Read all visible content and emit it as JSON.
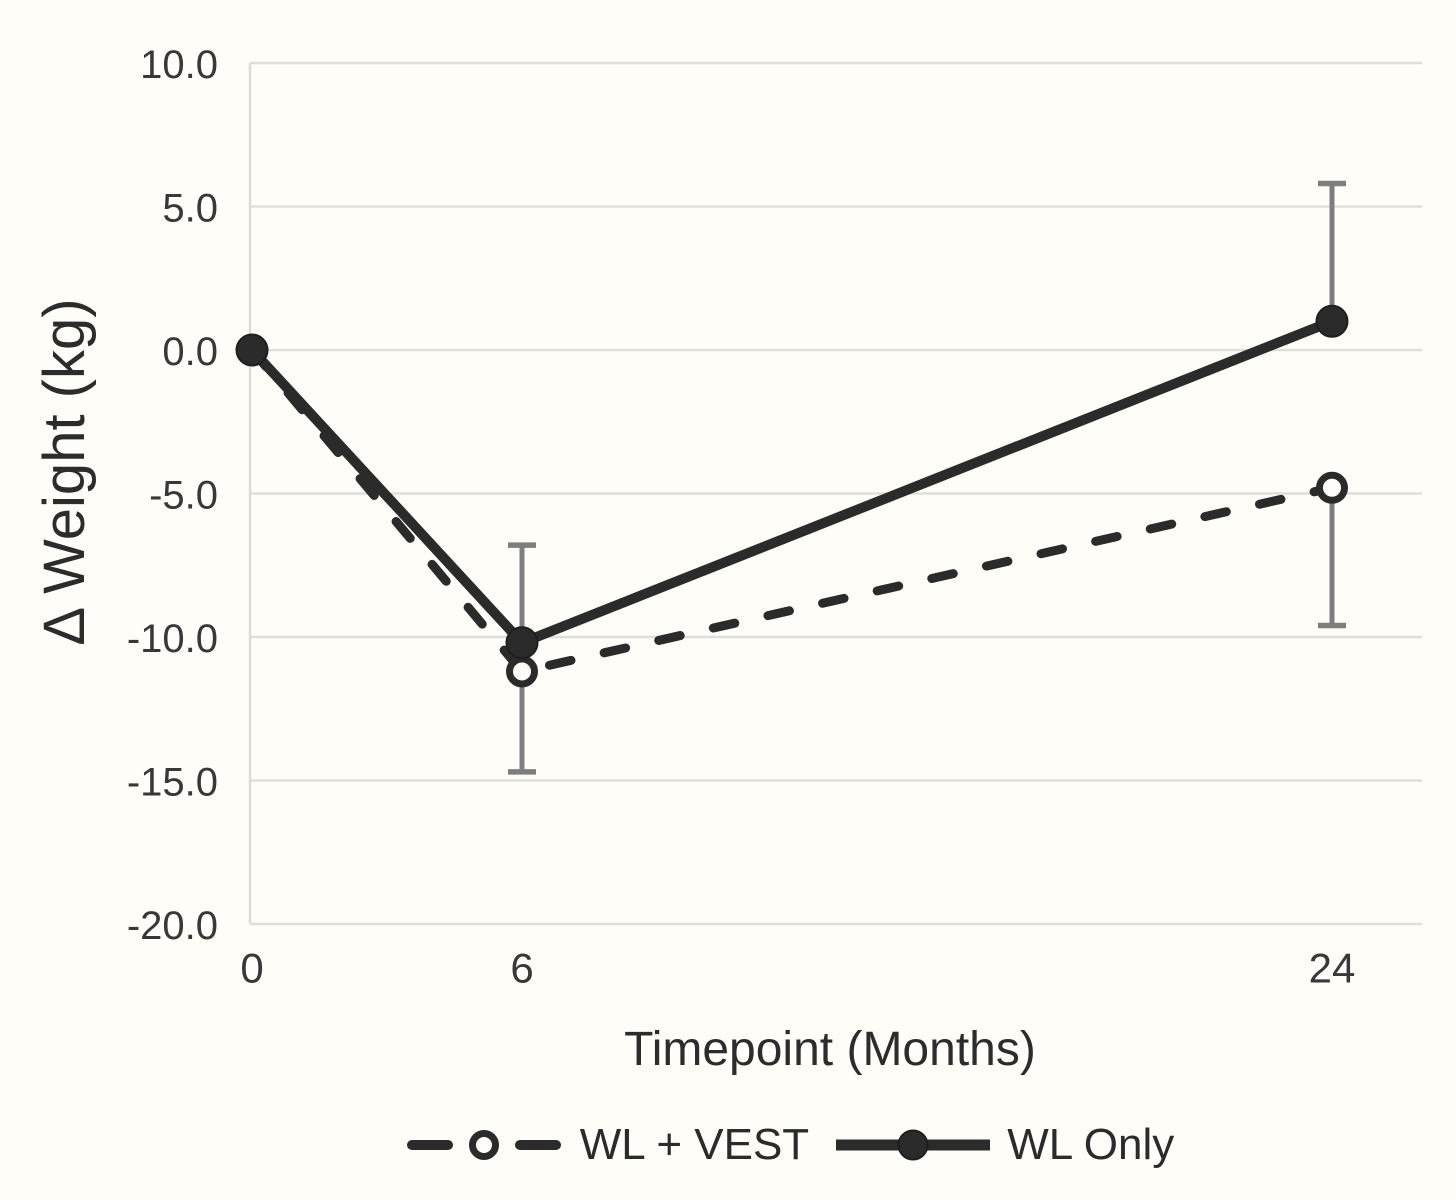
{
  "figure": {
    "background": "#fffdf7"
  },
  "chart_data": {
    "type": "line",
    "title": "",
    "xlabel": "Timepoint (Months)",
    "ylabel": "Δ Weight (kg)",
    "x": [
      0,
      6,
      24
    ],
    "x_tick_labels": [
      "0",
      "6",
      "24"
    ],
    "y_ticks": [
      10,
      5,
      0,
      -5,
      -10,
      -15,
      -20
    ],
    "y_tick_labels": [
      "10.0",
      "5.0",
      "0.0",
      "-5.0",
      "-10.0",
      "-15.0",
      "-20.0"
    ],
    "ylim": [
      -20,
      10
    ],
    "xlim": [
      0,
      26
    ],
    "grid": "horizontal",
    "legend_position": "bottom",
    "series": [
      {
        "name": "WL + VEST",
        "line_style": "dashed",
        "marker": "open-circle",
        "values": [
          0.0,
          -11.2,
          -4.8
        ],
        "error_bars": [
          {
            "x": 6,
            "from": -11.2,
            "to": -14.7
          },
          {
            "x": 24,
            "from": -4.8,
            "to": -9.6
          }
        ]
      },
      {
        "name": "WL Only",
        "line_style": "solid",
        "marker": "filled-circle",
        "values": [
          0.0,
          -10.2,
          1.0
        ],
        "error_bars": [
          {
            "x": 6,
            "from": -10.2,
            "to": -6.8
          },
          {
            "x": 24,
            "from": 1.0,
            "to": 5.8
          }
        ]
      }
    ],
    "colors": {
      "series_line": "#2b2b2b",
      "error_bar": "#7e7e7e",
      "gridline": "#dfded9",
      "axis_line": "#dcdbd6",
      "tick_text": "#383838",
      "axis_title_text": "#2c2c2c",
      "background": "#fffdf7"
    }
  }
}
